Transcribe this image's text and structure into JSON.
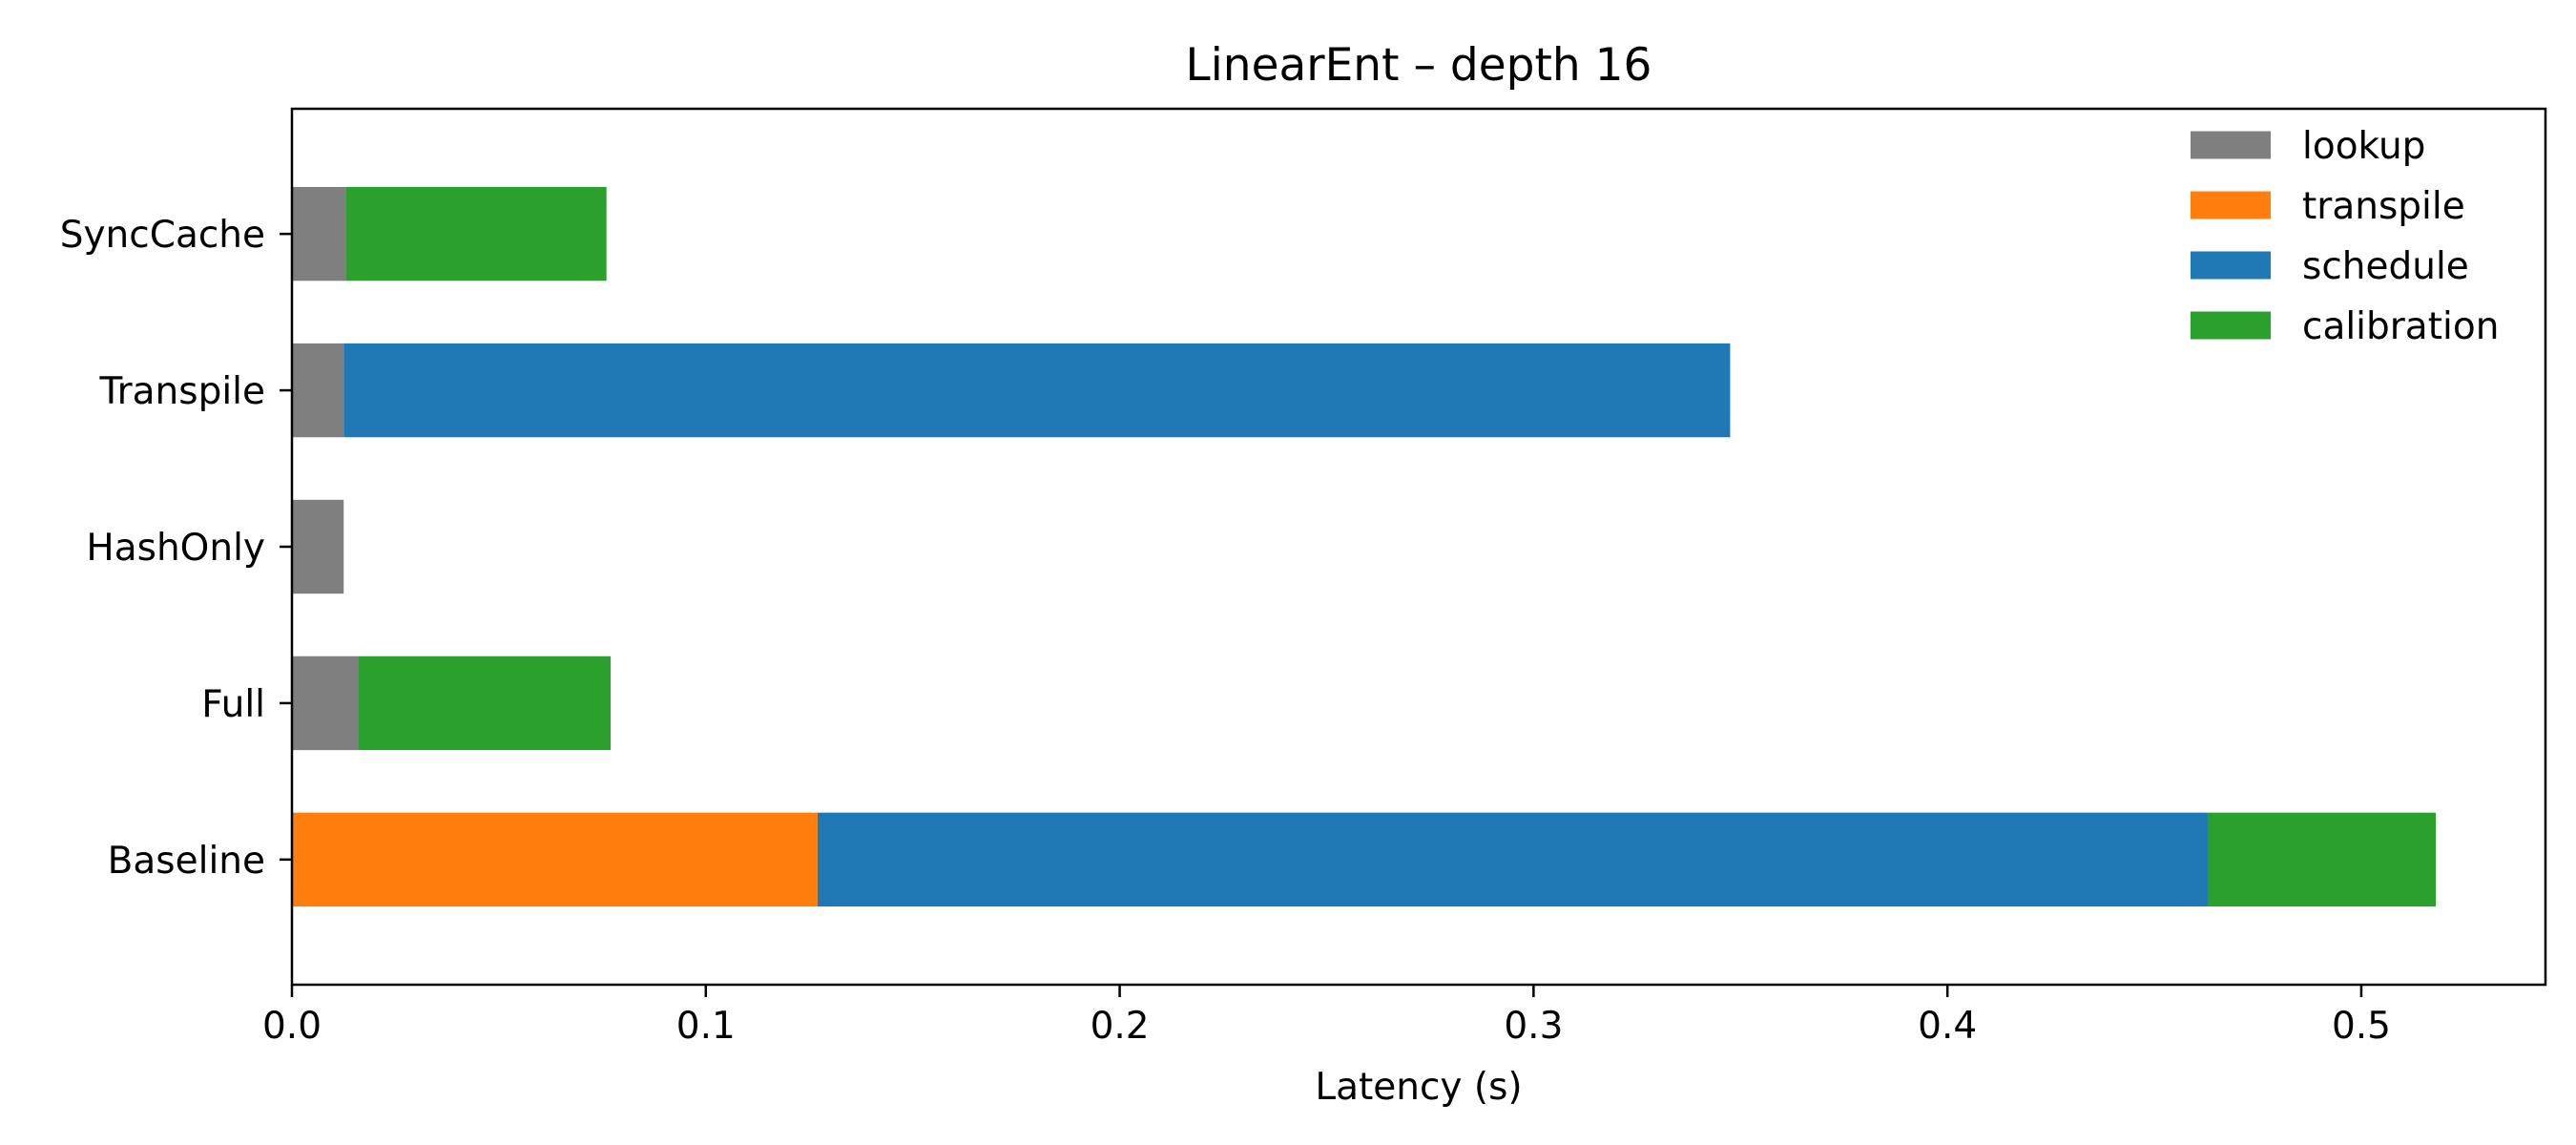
{
  "chart_data": {
    "type": "bar",
    "orientation": "horizontal",
    "stacked": true,
    "title": "LinearEnt – depth 16",
    "xlabel": "Latency (s)",
    "ylabel": "",
    "xlim": [
      0.0,
      0.5445
    ],
    "xticks": [
      0.0,
      0.1,
      0.2,
      0.3,
      0.4,
      0.5
    ],
    "xtick_labels": [
      "0.0",
      "0.1",
      "0.2",
      "0.3",
      "0.4",
      "0.5"
    ],
    "categories": [
      "Baseline",
      "Full",
      "HashOnly",
      "Transpile",
      "SyncCache"
    ],
    "series": [
      {
        "name": "lookup",
        "color": "#7f7f7f",
        "values": [
          0.0,
          0.016,
          0.0125,
          0.0125,
          0.013
        ]
      },
      {
        "name": "transpile",
        "color": "#ff7f0e",
        "values": [
          0.127,
          0.0,
          0.0,
          0.0,
          0.0
        ]
      },
      {
        "name": "schedule",
        "color": "#1f77b4",
        "values": [
          0.336,
          0.0,
          0.0,
          0.335,
          0.0
        ]
      },
      {
        "name": "calibration",
        "color": "#2ca02c",
        "values": [
          0.055,
          0.061,
          0.0,
          0.0,
          0.063
        ]
      }
    ],
    "legend_position": "top-right",
    "grid": false
  }
}
